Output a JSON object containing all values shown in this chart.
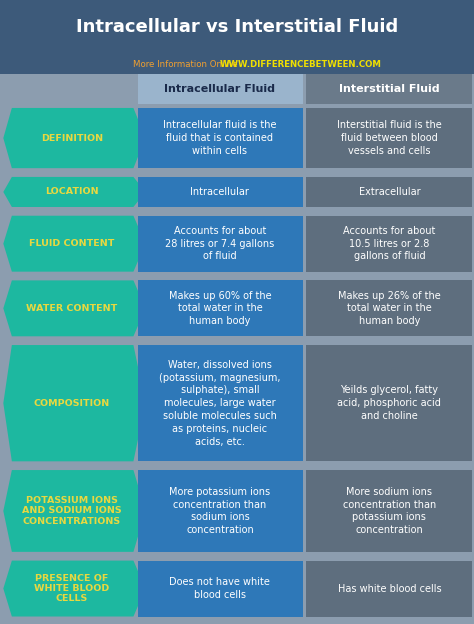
{
  "title": "Intracellular vs Interstitial Fluid",
  "subtitle_normal": "More Information Online  ",
  "subtitle_bold": "WWW.DIFFERENCEBETWEEN.COM",
  "col1_header": "Intracellular Fluid",
  "col2_header": "Interstitial Fluid",
  "bg_color": "#8c9daf",
  "header_bg_color": "#3d5a7a",
  "arrow_color": "#1db8a0",
  "col1_color": "#2e78b8",
  "col2_color": "#5e6e7e",
  "label_text_color": "#e8d840",
  "cell_text_color": "#ffffff",
  "col1_header_bg": "#9ab4cc",
  "col2_header_bg": "#6a7a8a",
  "col1_header_text": "#1a2a4a",
  "col2_header_text": "#ffffff",
  "rows": [
    {
      "label": "DEFINITION",
      "col1": "Intracellular fluid is the\nfluid that is contained\nwithin cells",
      "col2": "Interstitial fluid is the\nfluid between blood\nvessels and cells"
    },
    {
      "label": "LOCATION",
      "col1": "Intracellular",
      "col2": "Extracellular"
    },
    {
      "label": "FLUID CONTENT",
      "col1": "Accounts for about\n28 litres or 7.4 gallons\nof fluid",
      "col2": "Accounts for about\n10.5 litres or 2.8\ngallons of fluid"
    },
    {
      "label": "WATER CONTENT",
      "col1": "Makes up 60% of the\ntotal water in the\nhuman body",
      "col2": "Makes up 26% of the\ntotal water in the\nhuman body"
    },
    {
      "label": "COMPOSITION",
      "col1": "Water, dissolved ions\n(potassium, magnesium,\nsulphate), small\nmolecules, large water\nsoluble molecules such\nas proteins, nucleic\nacids, etc.",
      "col2": "Yeilds glycerol, fatty\nacid, phosphoric acid\nand choline"
    },
    {
      "label": "POTASSIUM IONS\nAND SODIUM IONS\nCONCENTRATIONS",
      "col1": "More potassium ions\nconcentration than\nsodium ions\nconcentration",
      "col2": "More sodium ions\nconcentration than\npotassium ions\nconcentration"
    },
    {
      "label": "PRESENCE OF\nWHITE BLOOD\nCELLS",
      "col1": "Does not have white\nblood cells",
      "col2": "Has white blood cells"
    }
  ],
  "row_heights_rel": [
    3.2,
    1.8,
    3.0,
    3.0,
    5.8,
    4.2,
    3.0
  ]
}
